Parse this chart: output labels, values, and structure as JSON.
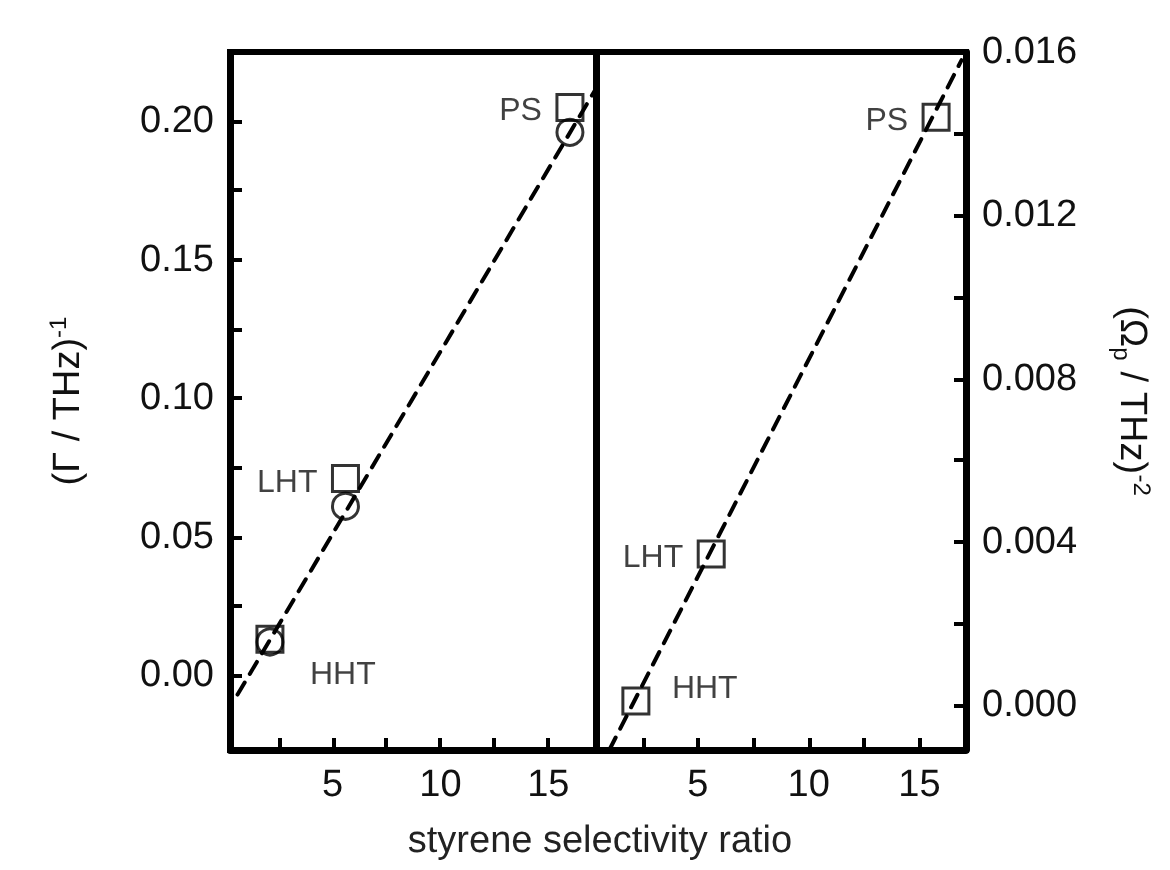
{
  "chart_data": [
    {
      "type": "scatter",
      "xlabel": "styrene selectivity ratio",
      "ylabel": "(Γ / THz)$^{-1}$",
      "xlim": [
        0.25,
        17.3
      ],
      "xticks": [
        {
          "value": 2.5,
          "label": null
        },
        5,
        {
          "value": 7.5,
          "label": null
        },
        10,
        {
          "value": 12.5,
          "label": null
        },
        15
      ],
      "ylim": [
        -0.027,
        0.225
      ],
      "yticks": [
        {
          "value": 0,
          "label": "0.00"
        },
        {
          "value": 0.025,
          "label": null
        },
        {
          "value": 0.05,
          "label": "0.05"
        },
        {
          "value": 0.075,
          "label": null
        },
        {
          "value": 0.1,
          "label": "0.10"
        },
        {
          "value": 0.125,
          "label": null
        },
        {
          "value": 0.15,
          "label": "0.15"
        },
        {
          "value": 0.175,
          "label": null
        },
        {
          "value": 0.2,
          "label": "0.20"
        }
      ],
      "series": [
        {
          "type": "scatter",
          "marker": "square",
          "color": "#000000",
          "x": [
            16.0,
            5.6,
            2.1
          ],
          "values": [
            0.205,
            0.071,
            0.013
          ]
        },
        {
          "type": "scatter",
          "marker": "circle",
          "color": "#000000",
          "x": [
            16.0,
            5.6,
            2.1
          ],
          "values": [
            0.196,
            0.061,
            0.012
          ]
        },
        {
          "type": "line",
          "marker": "none",
          "line_style": "dashed",
          "color": "#000000",
          "x": [
            0.6,
            17.3
          ],
          "values": [
            -0.007,
            0.213
          ]
        }
      ],
      "annotations": [
        "PS",
        "LHT",
        "HHT"
      ]
    },
    {
      "type": "scatter",
      "ylabel": "(Ω$_{p}$ / THz)$^{-2}$",
      "xlim": [
        0.4,
        17.1
      ],
      "xticks": [
        {
          "value": 2.5,
          "label": null
        },
        5,
        {
          "value": 7.5,
          "label": null
        },
        10,
        {
          "value": 12.5,
          "label": null
        },
        15
      ],
      "ylim": [
        -0.0011,
        0.016
      ],
      "yticks": [
        {
          "value": 0,
          "label": "0.000"
        },
        {
          "value": 0.002,
          "label": null
        },
        {
          "value": 0.004,
          "label": "0.004"
        },
        {
          "value": 0.006,
          "label": null
        },
        {
          "value": 0.008,
          "label": "0.008"
        },
        {
          "value": 0.01,
          "label": null
        },
        {
          "value": 0.012,
          "label": "0.012"
        },
        {
          "value": 0.014,
          "label": null
        },
        {
          "value": 0.016,
          "label": "0.016"
        }
      ],
      "series": [
        {
          "type": "scatter",
          "marker": "square",
          "color": "#000000",
          "x": [
            15.75,
            5.6,
            2.2
          ],
          "values": [
            0.0144,
            0.0037,
            0.0001
          ]
        },
        {
          "type": "line",
          "marker": "none",
          "line_style": "dashed",
          "color": "#000000",
          "x": [
            1.0,
            16.9
          ],
          "values": [
            -0.0011,
            0.0158
          ]
        }
      ],
      "annotations": [
        "PS",
        "LHT",
        "HHT"
      ]
    }
  ]
}
